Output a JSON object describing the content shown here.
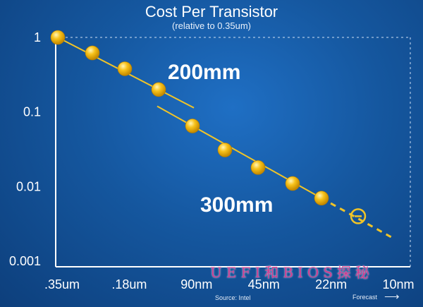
{
  "chart_data": {
    "type": "scatter",
    "title": "Cost Per Transistor",
    "subtitle": "(relative to 0.35um)",
    "y_scale": "log",
    "ylim": [
      0.001,
      1
    ],
    "y_ticks": [
      "1",
      "0.1",
      "0.01",
      "0.001"
    ],
    "x_ticks": [
      ".35um",
      ".18um",
      "90nm",
      "45nm",
      "22nm",
      "10nm"
    ],
    "grid": false,
    "series": [
      {
        "name": "200mm",
        "points": [
          {
            "x": ".35um",
            "y": 1.0
          },
          {
            "x": ".25um",
            "y": 0.62
          },
          {
            "x": ".18um",
            "y": 0.38
          },
          {
            "x": ".13um",
            "y": 0.2
          }
        ]
      },
      {
        "name": "300mm",
        "points": [
          {
            "x": "90nm",
            "y": 0.065
          },
          {
            "x": "65nm",
            "y": 0.031
          },
          {
            "x": "45nm",
            "y": 0.018
          },
          {
            "x": "32nm",
            "y": 0.011
          },
          {
            "x": "22nm",
            "y": 0.007
          }
        ],
        "forecast": [
          {
            "x": "14nm",
            "y": 0.004
          }
        ]
      }
    ],
    "colors": {
      "point": "#f7c21b",
      "line": "#f1c427",
      "axis": "#ffffff",
      "background": "#15579f"
    }
  },
  "footer": {
    "source": "Source: Intel",
    "forecast": "Forecast",
    "arrow": "⟶"
  },
  "watermark": "UEFI和BIOS探秘"
}
